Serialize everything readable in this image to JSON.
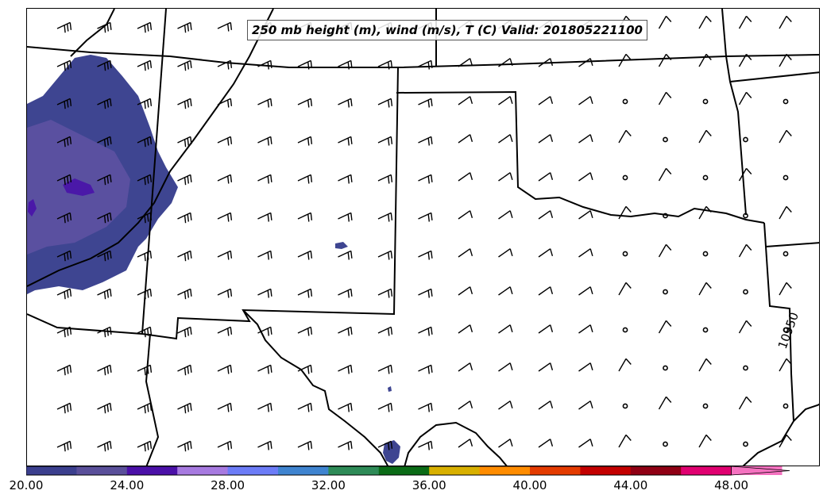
{
  "title": "250 mb height (m), wind (m/s), T (C) Valid: 201805221100",
  "contour_label": "10950",
  "colorbar": {
    "colors": [
      "#3b3f8e",
      "#5a4f9a",
      "#4b10a8",
      "#a77ae0",
      "#6c7cf7",
      "#3f84d0",
      "#2e8b57",
      "#0a6b16",
      "#d8b000",
      "#ff8c00",
      "#e43b00",
      "#c30000",
      "#8f0014",
      "#e00070",
      "#f572c0"
    ],
    "tick_labels": [
      "20.00",
      "24.00",
      "28.00",
      "32.00",
      "36.00",
      "40.00",
      "44.00",
      "48.00"
    ]
  },
  "map": {
    "shading_colors": {
      "base": "#3e4591",
      "mid": "#5a50a0",
      "core": "#4a18a8"
    },
    "line_color": "#000000"
  }
}
